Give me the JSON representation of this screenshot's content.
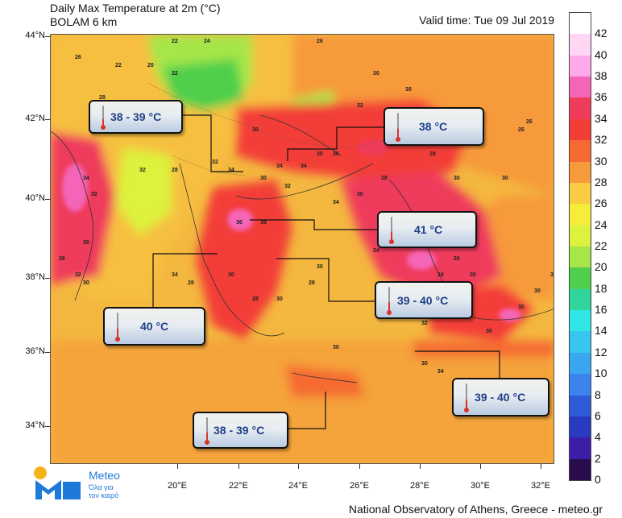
{
  "title_line1": "Daily Max Temperature at 2m (°C)",
  "title_line2": "BOLAM 6 km",
  "valid_time": "Valid time: Tue 09 Jul 2019",
  "lat_labels": [
    "44°N",
    "42°N",
    "40°N",
    "38°N",
    "36°N",
    "34°N"
  ],
  "lon_labels": [
    "20°E",
    "22°E",
    "24°E",
    "26°E",
    "28°E",
    "30°E",
    "32°E"
  ],
  "colorbar": {
    "labels": [
      "42",
      "40",
      "38",
      "36",
      "34",
      "32",
      "30",
      "28",
      "26",
      "24",
      "22",
      "20",
      "18",
      "16",
      "14",
      "12",
      "10",
      "8",
      "6",
      "4",
      "2",
      "0"
    ],
    "colors": [
      "#ffffff",
      "#ffd7f4",
      "#ffa8ea",
      "#f565b7",
      "#ef3b5c",
      "#f33d37",
      "#f56a33",
      "#f79a3a",
      "#f9cc43",
      "#f5ec3c",
      "#ddf13e",
      "#a6e649",
      "#4fcf4b",
      "#2fd59a",
      "#33e6e6",
      "#36c6ef",
      "#3aa6ef",
      "#3b83ed",
      "#2e5cd8",
      "#2a3ac0",
      "#3b1da7",
      "#2a0b4c"
    ]
  },
  "callouts": [
    {
      "label": "38 - 39 °C"
    },
    {
      "label": "38 °C"
    },
    {
      "label": "41 °C"
    },
    {
      "label": "39 - 40 °C"
    },
    {
      "label": "40 °C"
    },
    {
      "label": "39 - 40 °C"
    },
    {
      "label": "38 - 39  °C"
    }
  ],
  "logo": {
    "name": "Meteo",
    "tagline1": "Όλα για",
    "tagline2": "τον καιρό"
  },
  "footer": "National Observatory of Athens, Greece - meteo.gr",
  "map_values": [
    "26",
    "22",
    "22",
    "24",
    "20",
    "22",
    "26",
    "30",
    "30",
    "32",
    "30",
    "28",
    "30",
    "26",
    "28",
    "32",
    "34",
    "34",
    "34",
    "30",
    "30",
    "32",
    "36",
    "30",
    "32",
    "34",
    "32",
    "30",
    "34",
    "38",
    "36",
    "36",
    "32",
    "30",
    "34",
    "28",
    "30",
    "28",
    "30",
    "30",
    "28",
    "34",
    "30",
    "32",
    "32",
    "34",
    "30",
    "30",
    "26",
    "30",
    "30",
    "28",
    "28",
    "30",
    "30",
    "34",
    "32",
    "28",
    "30",
    "30",
    "30",
    "32"
  ]
}
